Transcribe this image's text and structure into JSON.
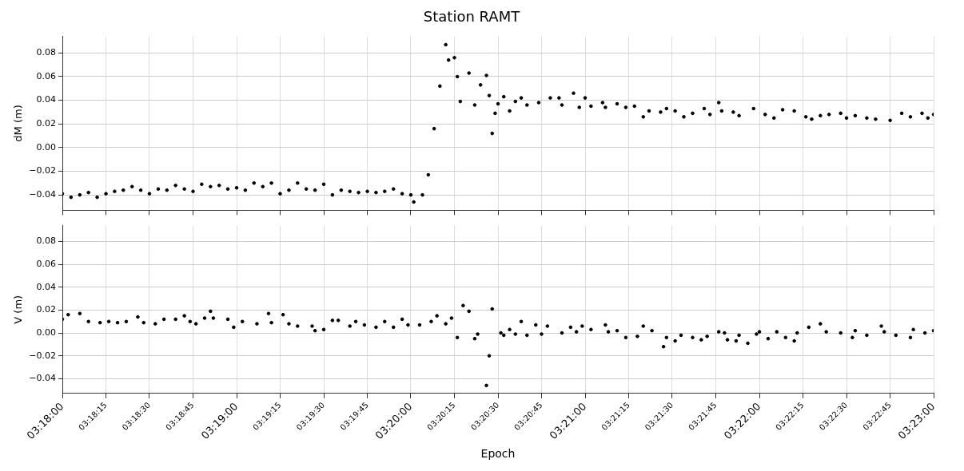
{
  "chart_data": [
    {
      "type": "scatter",
      "title": "Station RAMT",
      "ylabel": "dM (m)",
      "tick_labels": "y",
      "grid": true,
      "legend": false,
      "marker": "circle",
      "xlim": [
        3.3,
        3.38333
      ],
      "xticks": [
        {
          "value": 3.3,
          "label": null
        },
        {
          "value": 3.30417,
          "label": null
        },
        {
          "value": 3.30833,
          "label": null
        },
        {
          "value": 3.3125,
          "label": null
        },
        {
          "value": 3.31667,
          "label": null
        },
        {
          "value": 3.32083,
          "label": null
        },
        {
          "value": 3.325,
          "label": null
        },
        {
          "value": 3.32917,
          "label": null
        },
        {
          "value": 3.33333,
          "label": null
        },
        {
          "value": 3.3375,
          "label": null
        },
        {
          "value": 3.34167,
          "label": null
        },
        {
          "value": 3.34583,
          "label": null
        },
        {
          "value": 3.35,
          "label": null
        },
        {
          "value": 3.35417,
          "label": null
        },
        {
          "value": 3.35833,
          "label": null
        },
        {
          "value": 3.3625,
          "label": null
        },
        {
          "value": 3.36667,
          "label": null
        },
        {
          "value": 3.37083,
          "label": null
        },
        {
          "value": 3.375,
          "label": null
        },
        {
          "value": 3.37917,
          "label": null
        },
        {
          "value": 3.38333,
          "label": null
        }
      ],
      "ylim": [
        -0.053,
        0.094
      ],
      "yticks": [
        {
          "value": -0.04,
          "label": "−0.04"
        },
        {
          "value": -0.02,
          "label": "−0.02"
        },
        {
          "value": 0,
          "label": "0.00"
        },
        {
          "value": 0.02,
          "label": "0.02"
        },
        {
          "value": 0.04,
          "label": "0.04"
        },
        {
          "value": 0.06,
          "label": "0.06"
        },
        {
          "value": 0.08,
          "label": "0.08"
        }
      ],
      "series": [
        {
          "color": "#000000",
          "x": [
            3.3,
            3.30083,
            3.30167,
            3.3025,
            3.30333,
            3.30417,
            3.305,
            3.30583,
            3.30667,
            3.3075,
            3.30833,
            3.30917,
            3.31,
            3.31083,
            3.31167,
            3.3125,
            3.31333,
            3.31417,
            3.315,
            3.31583,
            3.31667,
            3.3175,
            3.31833,
            3.31917,
            3.32,
            3.32083,
            3.32167,
            3.3225,
            3.32333,
            3.32417,
            3.325,
            3.32583,
            3.32667,
            3.3275,
            3.32833,
            3.32917,
            3.33,
            3.33083,
            3.33167,
            3.3325,
            3.33333,
            3.33361,
            3.33444,
            3.335,
            3.33556,
            3.33611,
            3.33667,
            3.33694,
            3.3375,
            3.33778,
            3.33806,
            3.33889,
            3.33944,
            3.34,
            3.34056,
            3.34083,
            3.34111,
            3.34139,
            3.34167,
            3.34222,
            3.34278,
            3.34333,
            3.34389,
            3.34444,
            3.34556,
            3.34667,
            3.3475,
            3.34778,
            3.34889,
            3.34944,
            3.35,
            3.35056,
            3.35167,
            3.35194,
            3.35306,
            3.35389,
            3.35472,
            3.35556,
            3.35611,
            3.35722,
            3.35778,
            3.35861,
            3.35944,
            3.36028,
            3.36139,
            3.36194,
            3.36278,
            3.36306,
            3.36417,
            3.36472,
            3.36611,
            3.36722,
            3.36806,
            3.36889,
            3.37,
            3.37111,
            3.37167,
            3.3725,
            3.37333,
            3.37444,
            3.375,
            3.37583,
            3.37694,
            3.37778,
            3.37917,
            3.38028,
            3.38111,
            3.38222,
            3.38278,
            3.38333
          ],
          "values": [
            -0.039,
            -0.042,
            -0.04,
            -0.038,
            -0.042,
            -0.039,
            -0.037,
            -0.036,
            -0.033,
            -0.036,
            -0.039,
            -0.035,
            -0.036,
            -0.032,
            -0.035,
            -0.037,
            -0.031,
            -0.033,
            -0.032,
            -0.035,
            -0.034,
            -0.036,
            -0.03,
            -0.033,
            -0.03,
            -0.039,
            -0.036,
            -0.03,
            -0.035,
            -0.036,
            -0.031,
            -0.04,
            -0.036,
            -0.037,
            -0.038,
            -0.037,
            -0.038,
            -0.037,
            -0.035,
            -0.039,
            -0.04,
            -0.046,
            -0.04,
            -0.023,
            0.016,
            0.052,
            0.087,
            0.074,
            0.076,
            0.06,
            0.039,
            0.063,
            0.036,
            0.053,
            0.061,
            0.044,
            0.012,
            0.029,
            0.037,
            0.043,
            0.031,
            0.039,
            0.042,
            0.036,
            0.038,
            0.042,
            0.042,
            0.036,
            0.046,
            0.034,
            0.042,
            0.035,
            0.038,
            0.034,
            0.037,
            0.034,
            0.035,
            0.026,
            0.031,
            0.03,
            0.033,
            0.031,
            0.026,
            0.029,
            0.033,
            0.028,
            0.038,
            0.031,
            0.03,
            0.027,
            0.033,
            0.028,
            0.025,
            0.032,
            0.031,
            0.026,
            0.024,
            0.027,
            0.028,
            0.029,
            0.025,
            0.027,
            0.025,
            0.024,
            0.023,
            0.029,
            0.026,
            0.029,
            0.025,
            0.028
          ]
        }
      ]
    },
    {
      "type": "scatter",
      "xlabel": "Epoch",
      "ylabel": "V (m)",
      "grid": true,
      "legend": false,
      "marker": "circle",
      "xlim": [
        3.3,
        3.38333
      ],
      "xticks": [
        {
          "value": 3.3,
          "label": "03:18:00"
        },
        {
          "value": 3.30417,
          "label": "03:18:15"
        },
        {
          "value": 3.30833,
          "label": "03:18:30"
        },
        {
          "value": 3.3125,
          "label": "03:18:45"
        },
        {
          "value": 3.31667,
          "label": "03:19:00"
        },
        {
          "value": 3.32083,
          "label": "03:19:15"
        },
        {
          "value": 3.325,
          "label": "03:19:30"
        },
        {
          "value": 3.32917,
          "label": "03:19:45"
        },
        {
          "value": 3.33333,
          "label": "03:20:00"
        },
        {
          "value": 3.3375,
          "label": "03:20:15"
        },
        {
          "value": 3.34167,
          "label": "03:20:30"
        },
        {
          "value": 3.34583,
          "label": "03:20:45"
        },
        {
          "value": 3.35,
          "label": "03:21:00"
        },
        {
          "value": 3.35417,
          "label": "03:21:15"
        },
        {
          "value": 3.35833,
          "label": "03:21:30"
        },
        {
          "value": 3.3625,
          "label": "03:21:45"
        },
        {
          "value": 3.36667,
          "label": "03:22:00"
        },
        {
          "value": 3.37083,
          "label": "03:22:15"
        },
        {
          "value": 3.375,
          "label": "03:22:30"
        },
        {
          "value": 3.37917,
          "label": "03:22:45"
        },
        {
          "value": 3.38333,
          "label": "03:23:00"
        }
      ],
      "ylim": [
        -0.053,
        0.094
      ],
      "yticks": [
        {
          "value": -0.04,
          "label": "−0.04"
        },
        {
          "value": -0.02,
          "label": "−0.02"
        },
        {
          "value": 0,
          "label": "0.00"
        },
        {
          "value": 0.02,
          "label": "0.02"
        },
        {
          "value": 0.04,
          "label": "0.04"
        },
        {
          "value": 0.06,
          "label": "0.06"
        },
        {
          "value": 0.08,
          "label": "0.08"
        }
      ],
      "series": [
        {
          "color": "#000000",
          "x": [
            3.3,
            3.30056,
            3.30167,
            3.3025,
            3.30361,
            3.30444,
            3.30528,
            3.30611,
            3.30722,
            3.30778,
            3.30889,
            3.30972,
            3.31083,
            3.31167,
            3.31222,
            3.31278,
            3.31361,
            3.31417,
            3.31444,
            3.31583,
            3.31639,
            3.31722,
            3.31861,
            3.31972,
            3.32,
            3.32111,
            3.32167,
            3.3225,
            3.32389,
            3.32417,
            3.325,
            3.32583,
            3.32639,
            3.3275,
            3.32806,
            3.32889,
            3.33,
            3.33083,
            3.33167,
            3.3325,
            3.33306,
            3.33417,
            3.33528,
            3.33583,
            3.33667,
            3.33722,
            3.33778,
            3.33833,
            3.33889,
            3.33944,
            3.33972,
            3.34056,
            3.34083,
            3.34111,
            3.34194,
            3.34222,
            3.34278,
            3.34333,
            3.34389,
            3.34444,
            3.34528,
            3.34583,
            3.34639,
            3.34778,
            3.34861,
            3.34917,
            3.34972,
            3.35056,
            3.35194,
            3.35222,
            3.35306,
            3.35389,
            3.355,
            3.35556,
            3.35639,
            3.3575,
            3.35778,
            3.35861,
            3.35917,
            3.36028,
            3.36111,
            3.36167,
            3.36278,
            3.36333,
            3.36361,
            3.36444,
            3.36472,
            3.36556,
            3.36639,
            3.36667,
            3.3675,
            3.36833,
            3.36917,
            3.37,
            3.37028,
            3.37139,
            3.3725,
            3.37306,
            3.37444,
            3.37556,
            3.37583,
            3.37694,
            3.37833,
            3.37861,
            3.37972,
            3.38111,
            3.38139,
            3.3825,
            3.38333
          ],
          "values": [
            0.012,
            0.016,
            0.017,
            0.01,
            0.009,
            0.01,
            0.009,
            0.01,
            0.014,
            0.009,
            0.008,
            0.012,
            0.012,
            0.015,
            0.01,
            0.008,
            0.013,
            0.019,
            0.013,
            0.012,
            0.005,
            0.01,
            0.008,
            0.017,
            0.009,
            0.016,
            0.008,
            0.006,
            0.006,
            0.002,
            0.003,
            0.011,
            0.011,
            0.006,
            0.01,
            0.007,
            0.005,
            0.01,
            0.005,
            0.012,
            0.007,
            0.007,
            0.01,
            0.015,
            0.008,
            0.013,
            -0.004,
            0.024,
            0.019,
            -0.005,
            -0.001,
            -0.046,
            -0.02,
            0.021,
            0.0,
            -0.002,
            0.003,
            -0.001,
            0.01,
            -0.002,
            0.007,
            -0.001,
            0.006,
            0.0,
            0.005,
            0.001,
            0.006,
            0.003,
            0.007,
            0.001,
            0.002,
            -0.004,
            -0.003,
            0.006,
            0.002,
            -0.012,
            -0.004,
            -0.007,
            -0.002,
            -0.004,
            -0.006,
            -0.003,
            0.001,
            0.0,
            -0.006,
            -0.007,
            -0.002,
            -0.009,
            -0.001,
            0.001,
            -0.005,
            0.001,
            -0.004,
            -0.007,
            0.0,
            0.005,
            0.008,
            0.001,
            0.0,
            -0.004,
            0.002,
            -0.002,
            0.006,
            0.001,
            -0.002,
            -0.004,
            0.003,
            0.0,
            0.002
          ]
        }
      ]
    }
  ]
}
